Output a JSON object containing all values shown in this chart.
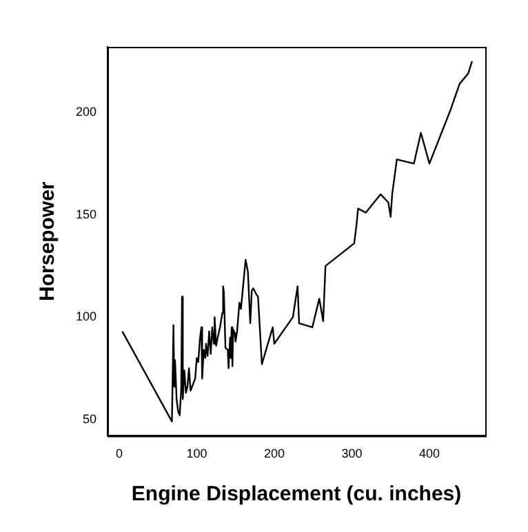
{
  "chart_data": {
    "type": "line",
    "xlabel": "Engine Displacement (cu. inches)",
    "ylabel": "Horsepower",
    "x": [
      4,
      68,
      70,
      71,
      72,
      74,
      76,
      78,
      80,
      81,
      82,
      84,
      86,
      88,
      90,
      92,
      96,
      98,
      100,
      102,
      104,
      106,
      107,
      109,
      111,
      112,
      114,
      116,
      118,
      120,
      122,
      123,
      125,
      127,
      130,
      133,
      134,
      135,
      137,
      140,
      141,
      143,
      144,
      145,
      146,
      147,
      149,
      150,
      152,
      155,
      157,
      163,
      166,
      169,
      171,
      173,
      177,
      179,
      184,
      198,
      200,
      224,
      230,
      232,
      249,
      258,
      263,
      266,
      303,
      306,
      308,
      318,
      337,
      347,
      350,
      352,
      358,
      380,
      389,
      400,
      427,
      439,
      450,
      455
    ],
    "series": [
      {
        "color": "#000000",
        "values": [
          93,
          49,
          96,
          66,
          79,
          60,
          54,
          52,
          65,
          110,
          60,
          74,
          63,
          66,
          75,
          64,
          68,
          70,
          80,
          78,
          89,
          95,
          70,
          84,
          80,
          87,
          81,
          93,
          82,
          95,
          87,
          100,
          86,
          90,
          95,
          102,
          115,
          112,
          85,
          84,
          75,
          90,
          80,
          95,
          76,
          94,
          92,
          88,
          93,
          107,
          104,
          128,
          122,
          97,
          113,
          114,
          111,
          110,
          77,
          95,
          87,
          100,
          115,
          97,
          95,
          109,
          98,
          125,
          136,
          145,
          153,
          151,
          160,
          156,
          149,
          160,
          177,
          175,
          190,
          175,
          201,
          214,
          219,
          225
        ]
      }
    ],
    "xlim": [
      -15,
      472
    ],
    "ylim": [
      42,
      232
    ],
    "xticks": [
      0,
      100,
      200,
      300,
      400
    ],
    "yticks": [
      50,
      100,
      150,
      200
    ],
    "grid": false,
    "legend": false,
    "marker": "none",
    "line_style": "solid"
  }
}
